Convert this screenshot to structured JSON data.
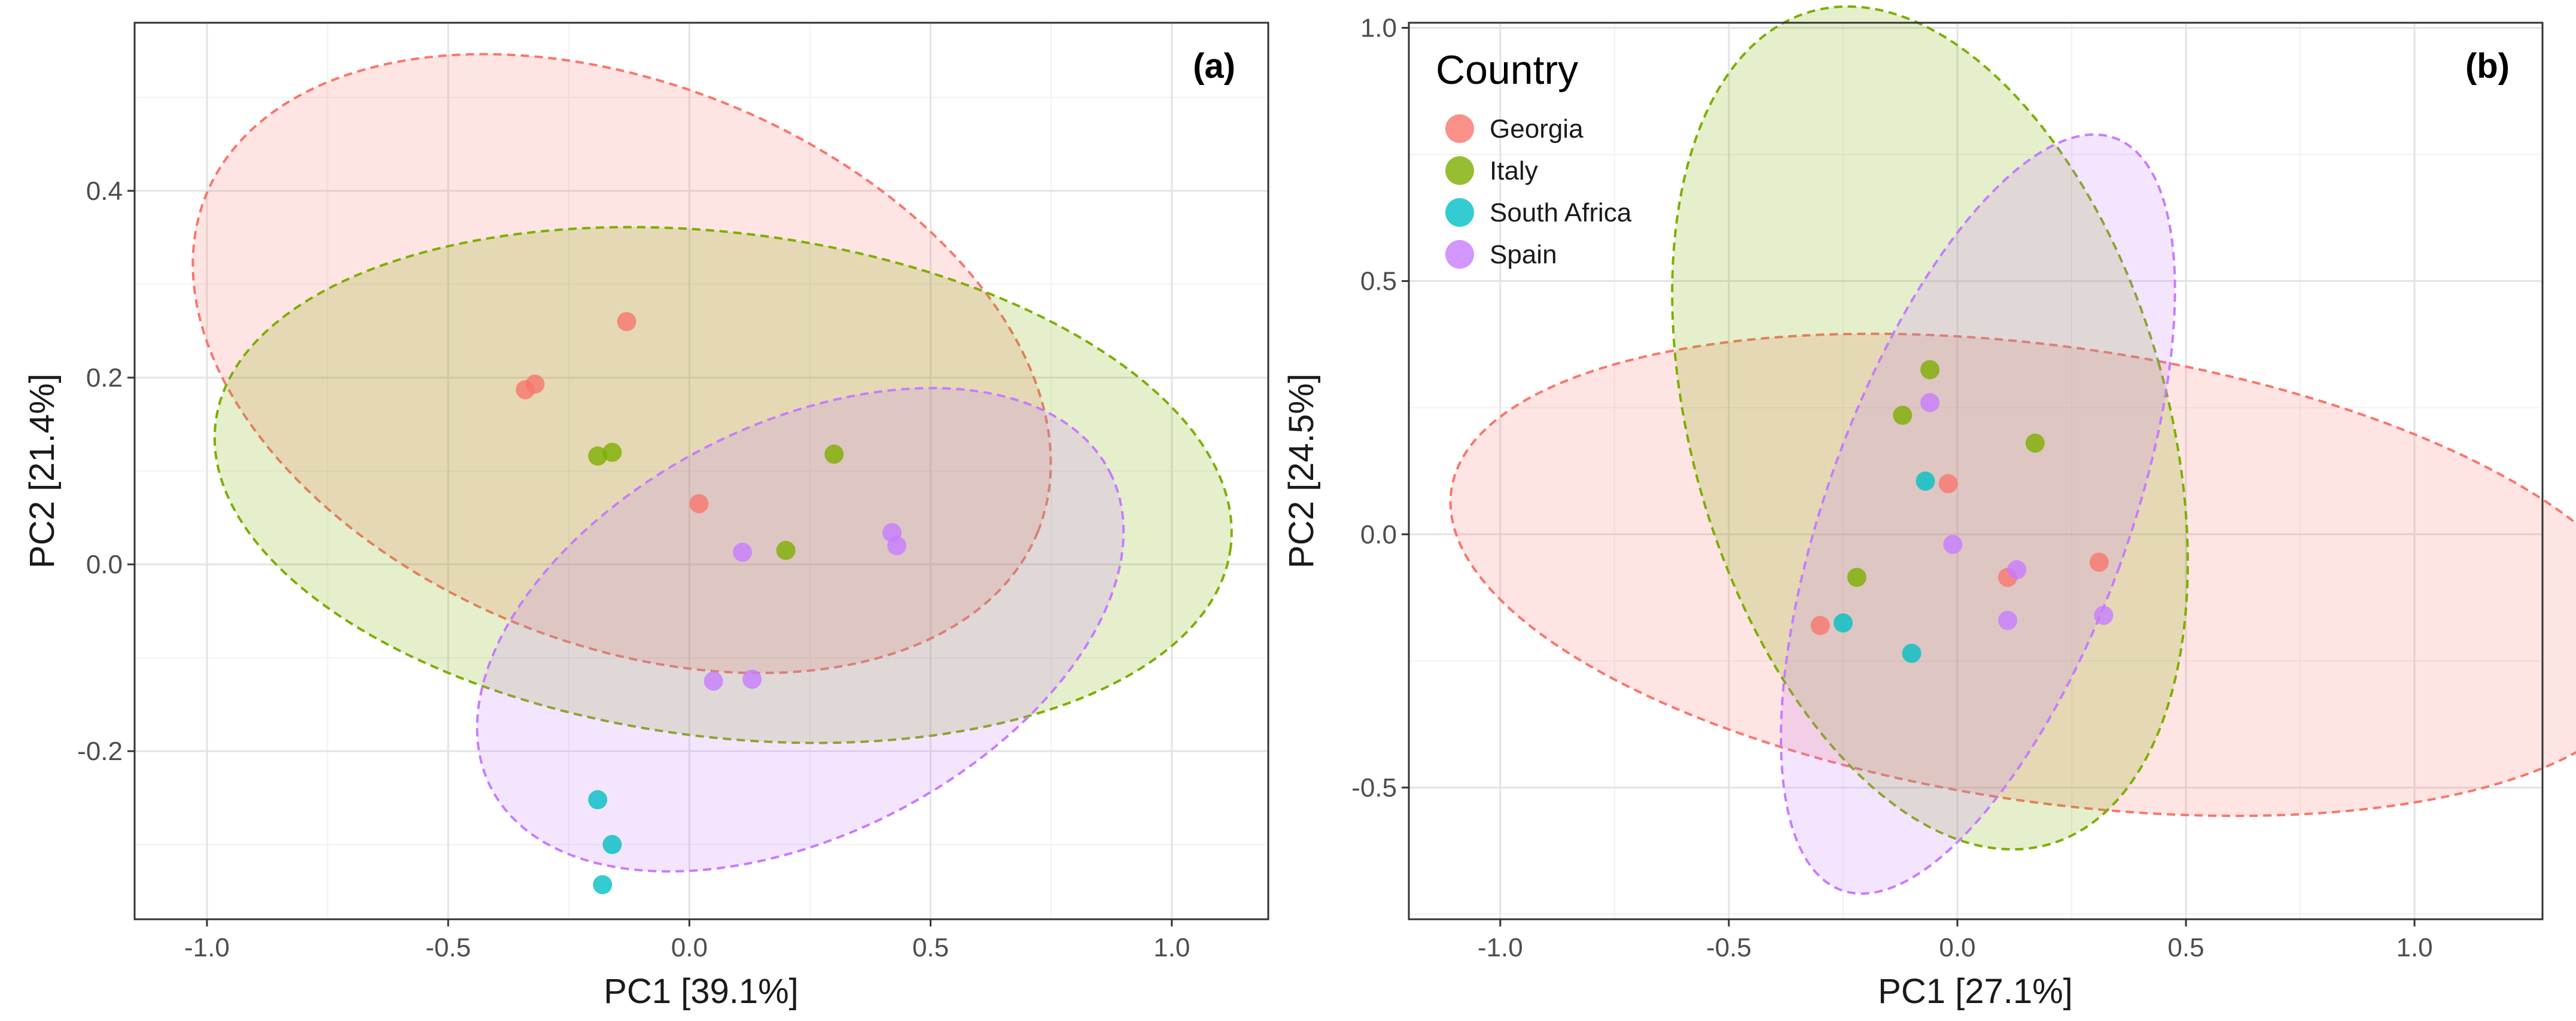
{
  "legend": {
    "title": "Country",
    "entries": [
      {
        "label": "Georgia",
        "color": "#F8766D"
      },
      {
        "label": "Italy",
        "color": "#7CAE00"
      },
      {
        "label": "South Africa",
        "color": "#00BFC4"
      },
      {
        "label": "Spain",
        "color": "#C77CFF"
      }
    ]
  },
  "chart_data": [
    {
      "type": "scatter",
      "panel_label": "(a)",
      "xlabel": "PC1 [39.1%]",
      "ylabel": "PC2 [21.4%]",
      "xlim": [
        -1.15,
        1.2
      ],
      "ylim": [
        -0.38,
        0.58
      ],
      "xticks": [
        -1.0,
        -0.5,
        0.0,
        0.5,
        1.0
      ],
      "xtick_labels": [
        "-1.0",
        "-0.5",
        "0.0",
        "0.5",
        "1.0"
      ],
      "yticks": [
        -0.2,
        0.0,
        0.2,
        0.4
      ],
      "ytick_labels": [
        "-0.2",
        "0.0",
        "0.2",
        "0.4"
      ],
      "grid": true,
      "series": [
        {
          "name": "Georgia",
          "color": "#F8766D",
          "points": [
            {
              "x": -0.34,
              "y": 0.187
            },
            {
              "x": -0.32,
              "y": 0.193
            },
            {
              "x": -0.13,
              "y": 0.26
            },
            {
              "x": 0.02,
              "y": 0.065
            }
          ],
          "ellipse": {
            "cx": -0.14,
            "cy": 0.215,
            "rx": 0.93,
            "ry": 0.3,
            "angle_deg": -22
          }
        },
        {
          "name": "Italy",
          "color": "#7CAE00",
          "points": [
            {
              "x": -0.19,
              "y": 0.116
            },
            {
              "x": -0.16,
              "y": 0.12
            },
            {
              "x": 0.2,
              "y": 0.015
            },
            {
              "x": 0.3,
              "y": 0.118
            }
          ],
          "ellipse": {
            "cx": 0.07,
            "cy": 0.085,
            "rx": 1.06,
            "ry": 0.27,
            "angle_deg": -7
          }
        },
        {
          "name": "South Africa",
          "color": "#00BFC4",
          "points": [
            {
              "x": -0.19,
              "y": -0.252
            },
            {
              "x": -0.16,
              "y": -0.3
            },
            {
              "x": -0.18,
              "y": -0.343
            }
          ]
        },
        {
          "name": "Spain",
          "color": "#C77CFF",
          "points": [
            {
              "x": 0.05,
              "y": -0.125
            },
            {
              "x": 0.11,
              "y": 0.013
            },
            {
              "x": 0.13,
              "y": -0.123
            },
            {
              "x": 0.42,
              "y": 0.034
            },
            {
              "x": 0.43,
              "y": 0.02
            }
          ],
          "ellipse": {
            "cx": 0.23,
            "cy": -0.07,
            "rx": 0.72,
            "ry": 0.22,
            "angle_deg": 27
          }
        }
      ]
    },
    {
      "type": "scatter",
      "panel_label": "(b)",
      "xlabel": "PC1 [27.1%]",
      "ylabel": "PC2 [24.5%]",
      "xlim": [
        -1.2,
        1.28
      ],
      "ylim": [
        -0.76,
        1.01
      ],
      "xticks": [
        -1.0,
        -0.5,
        0.0,
        0.5,
        1.0
      ],
      "xtick_labels": [
        "-1.0",
        "-0.5",
        "0.0",
        "0.5",
        "1.0"
      ],
      "yticks": [
        -0.5,
        0.0,
        0.5,
        1.0
      ],
      "ytick_labels": [
        "-0.5",
        "0.0",
        "0.5",
        "1.0"
      ],
      "grid": true,
      "series": [
        {
          "name": "Georgia",
          "color": "#F8766D",
          "points": [
            {
              "x": -0.3,
              "y": -0.18
            },
            {
              "x": -0.02,
              "y": 0.1
            },
            {
              "x": 0.11,
              "y": -0.085
            },
            {
              "x": 0.31,
              "y": -0.055
            }
          ],
          "ellipse": {
            "cx": 0.21,
            "cy": -0.08,
            "rx": 1.33,
            "ry": 0.45,
            "angle_deg": -8
          }
        },
        {
          "name": "Italy",
          "color": "#7CAE00",
          "points": [
            {
              "x": -0.22,
              "y": -0.085
            },
            {
              "x": -0.12,
              "y": 0.235
            },
            {
              "x": -0.06,
              "y": 0.325
            },
            {
              "x": 0.17,
              "y": 0.18
            }
          ],
          "ellipse": {
            "cx": -0.06,
            "cy": 0.21,
            "rx": 0.52,
            "ry": 0.855,
            "angle_deg": 16
          }
        },
        {
          "name": "South Africa",
          "color": "#00BFC4",
          "points": [
            {
              "x": -0.25,
              "y": -0.175
            },
            {
              "x": -0.1,
              "y": -0.235
            },
            {
              "x": -0.07,
              "y": 0.105
            }
          ]
        },
        {
          "name": "Spain",
          "color": "#C77CFF",
          "points": [
            {
              "x": -0.06,
              "y": 0.26
            },
            {
              "x": -0.01,
              "y": -0.02
            },
            {
              "x": 0.11,
              "y": -0.17
            },
            {
              "x": 0.13,
              "y": -0.07
            },
            {
              "x": 0.32,
              "y": -0.16
            }
          ],
          "ellipse": {
            "cx": 0.045,
            "cy": 0.04,
            "rx": 0.33,
            "ry": 0.79,
            "angle_deg": -20
          }
        }
      ]
    }
  ]
}
